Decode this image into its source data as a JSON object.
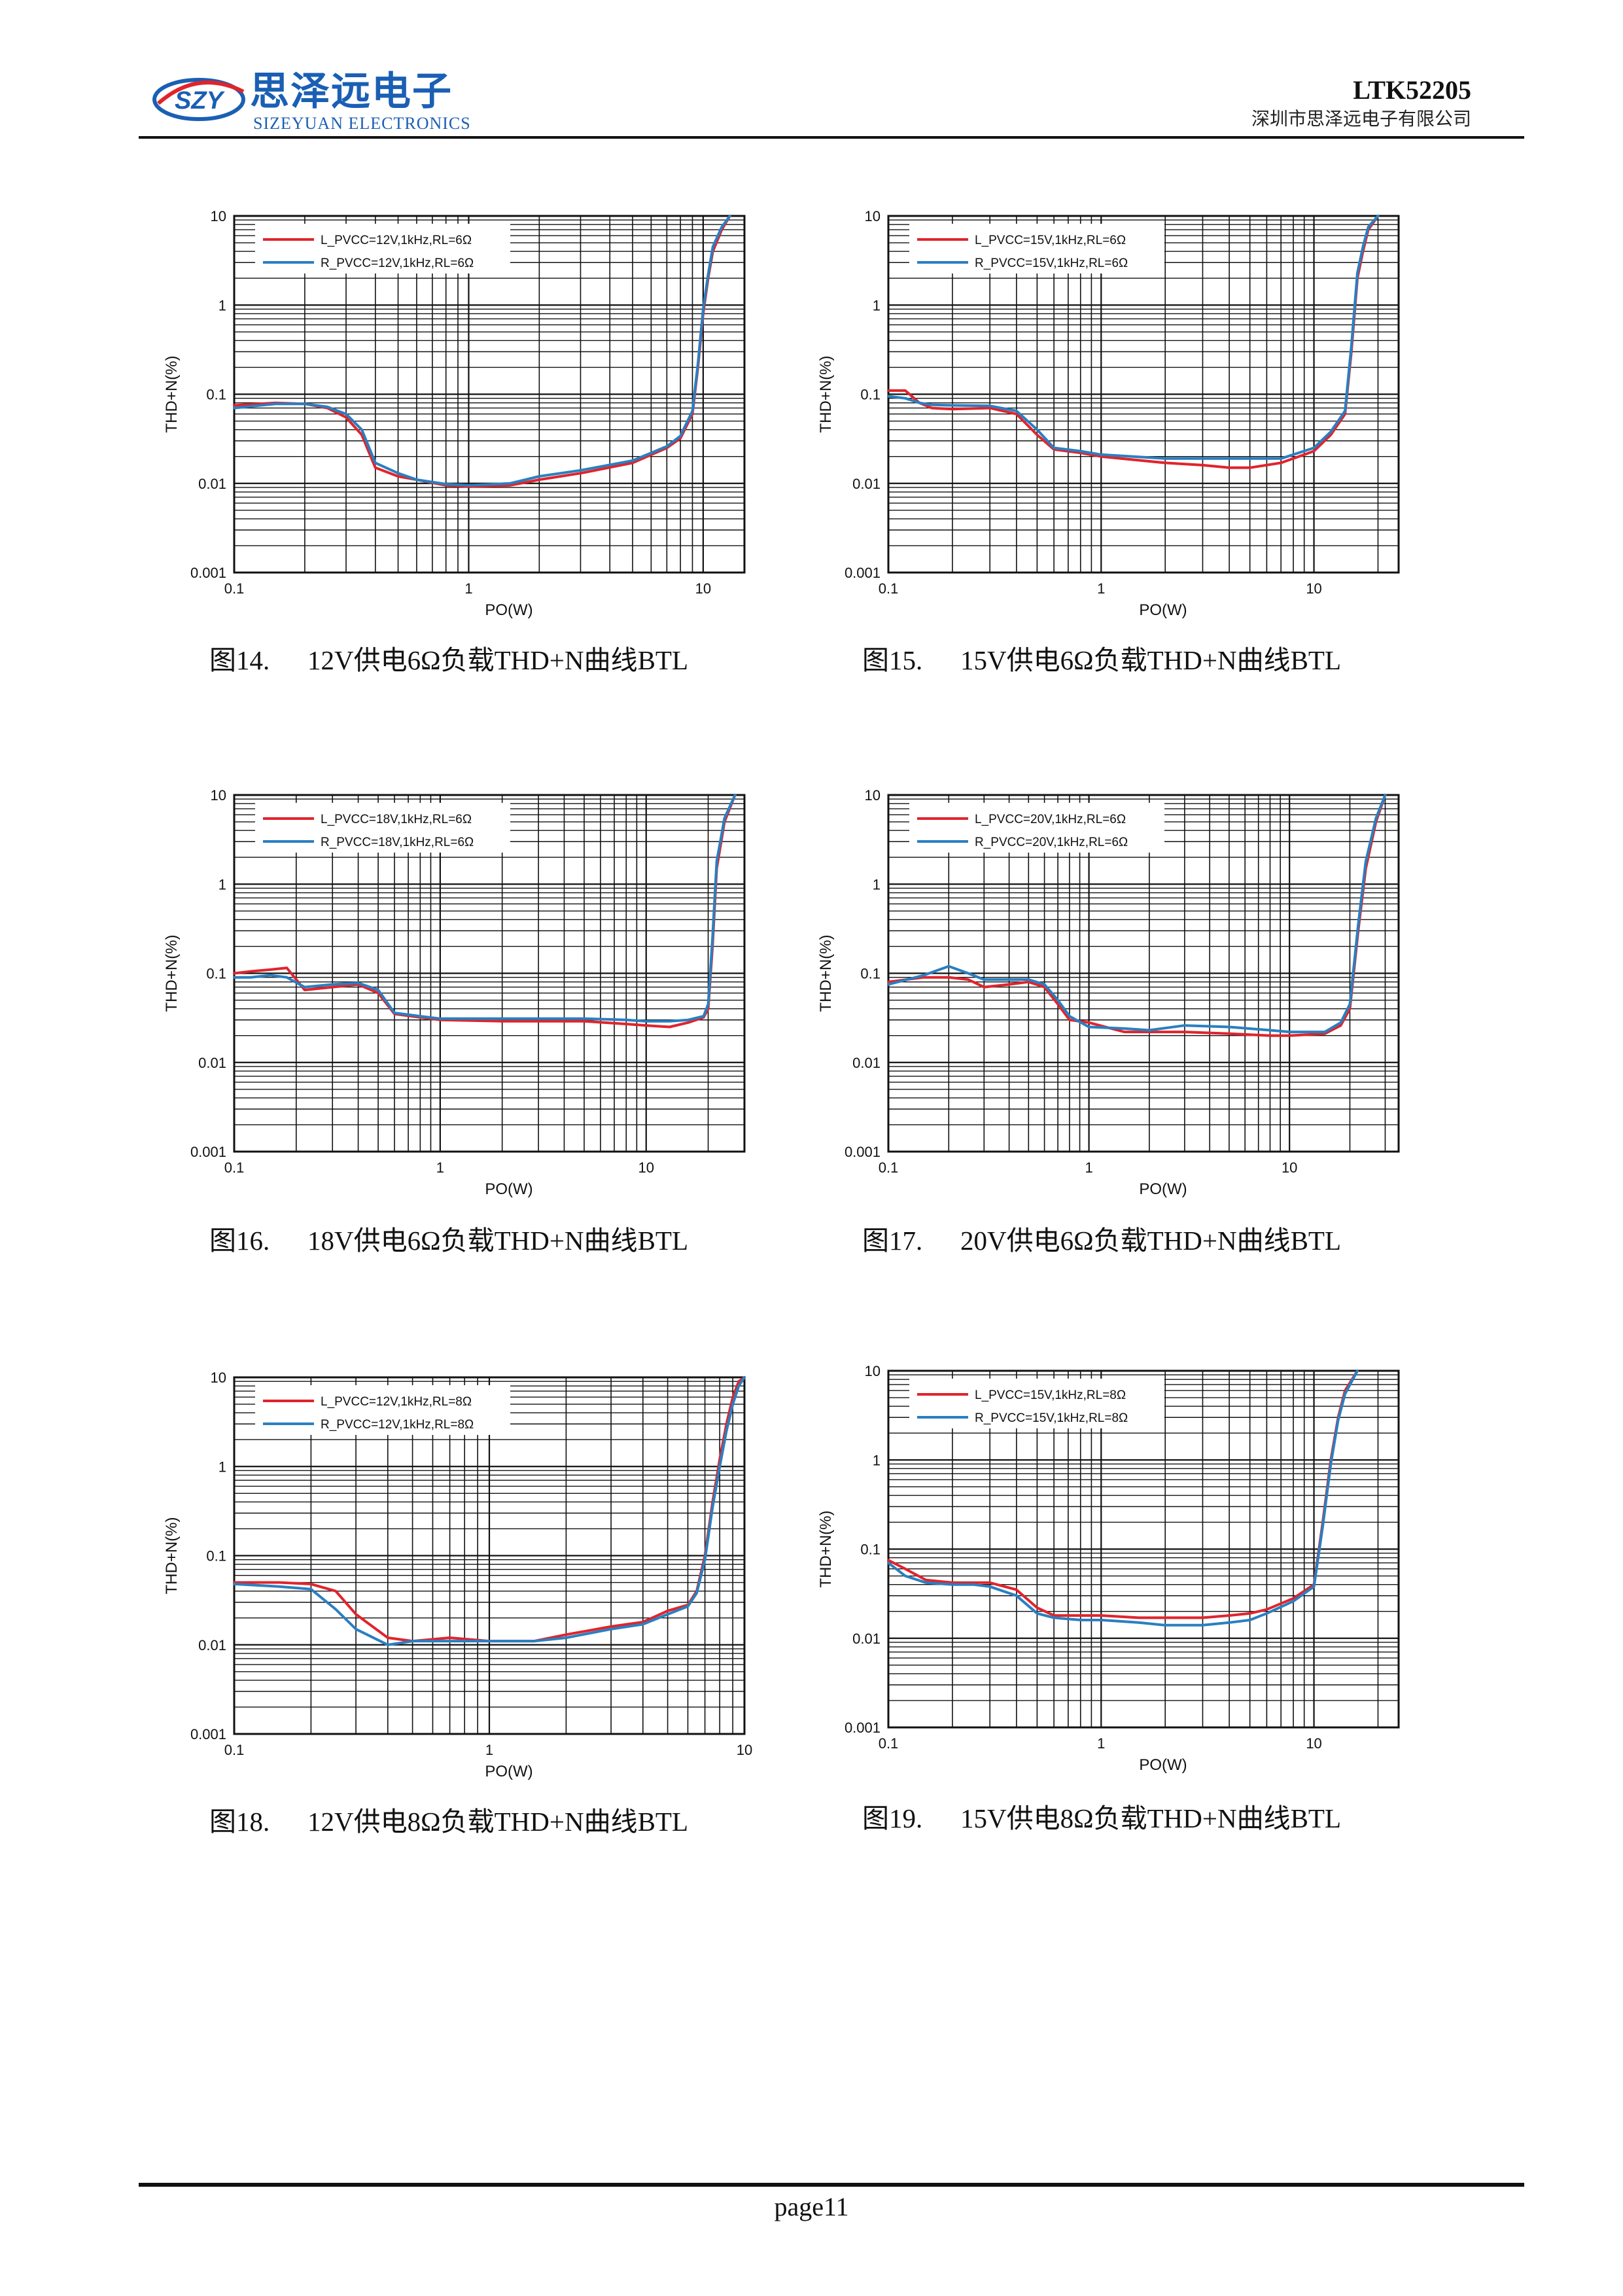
{
  "header": {
    "logo_badge_text": "SZY",
    "logo_company_cn": "思泽远电子",
    "logo_company_en": "SIZEYUAN ELECTRONICS",
    "doc_code": "LTK52205",
    "company_name": "深圳市思泽远电子有限公司"
  },
  "colors": {
    "left_channel": "#e0242c",
    "right_channel": "#2a7fc1",
    "logo": "#1a5fb4"
  },
  "figures": [
    {
      "label": "图14.",
      "title": "12V供电6Ω负载THD+N曲线BTL"
    },
    {
      "label": "图15.",
      "title": "15V供电6Ω负载THD+N曲线BTL"
    },
    {
      "label": "图16.",
      "title": "18V供电6Ω负载THD+N曲线BTL"
    },
    {
      "label": "图17.",
      "title": "20V供电6Ω负载THD+N曲线BTL"
    },
    {
      "label": "图18.",
      "title": "12V供电8Ω负载THD+N曲线BTL"
    },
    {
      "label": "图19.",
      "title": "15V供电8Ω负载THD+N曲线BTL"
    }
  ],
  "chart_data": [
    {
      "type": "line",
      "xscale": "log",
      "yscale": "log",
      "xlabel": "PO(W)",
      "ylabel": "THD+N(%)",
      "xlim": [
        0.1,
        15
      ],
      "ylim": [
        0.001,
        10
      ],
      "xticks": [
        "0.1",
        "1",
        "10"
      ],
      "yticks": [
        "0.001",
        "0.01",
        "0.1",
        "1",
        "10"
      ],
      "grid": true,
      "legend_position": "top-left",
      "series": [
        {
          "name": "L_PVCC=12V,1kHz,RL=6Ω",
          "x": [
            0.1,
            0.15,
            0.2,
            0.25,
            0.3,
            0.35,
            0.4,
            0.5,
            0.6,
            0.8,
            1,
            1.5,
            2,
            3,
            5,
            7,
            8,
            9,
            9.5,
            10,
            10.5,
            11,
            12,
            13
          ],
          "y": [
            0.075,
            0.08,
            0.078,
            0.07,
            0.055,
            0.035,
            0.015,
            0.012,
            0.011,
            0.0095,
            0.0092,
            0.0095,
            0.011,
            0.013,
            0.017,
            0.025,
            0.032,
            0.06,
            0.2,
            0.8,
            2,
            4,
            7,
            10
          ]
        },
        {
          "name": "R_PVCC=12V,1kHz,RL=6Ω",
          "x": [
            0.1,
            0.15,
            0.2,
            0.25,
            0.3,
            0.35,
            0.4,
            0.5,
            0.6,
            0.8,
            1,
            1.5,
            2,
            3,
            5,
            7,
            8,
            9,
            9.5,
            10,
            10.5,
            11,
            12,
            13
          ],
          "y": [
            0.07,
            0.078,
            0.078,
            0.072,
            0.06,
            0.04,
            0.017,
            0.013,
            0.011,
            0.0098,
            0.0095,
            0.01,
            0.012,
            0.014,
            0.018,
            0.026,
            0.034,
            0.065,
            0.22,
            0.9,
            2.2,
            4.5,
            7.5,
            10
          ]
        }
      ]
    },
    {
      "type": "line",
      "xscale": "log",
      "yscale": "log",
      "xlabel": "PO(W)",
      "ylabel": "THD+N(%)",
      "xlim": [
        0.1,
        25
      ],
      "ylim": [
        0.001,
        10
      ],
      "xticks": [
        "0.1",
        "1",
        "10"
      ],
      "yticks": [
        "0.001",
        "0.01",
        "0.1",
        "1",
        "10"
      ],
      "grid": true,
      "legend_position": "top-left",
      "series": [
        {
          "name": "L_PVCC=15V,1kHz,RL=6Ω",
          "x": [
            0.1,
            0.12,
            0.14,
            0.16,
            0.2,
            0.3,
            0.4,
            0.5,
            0.6,
            0.8,
            1,
            2,
            3,
            4,
            5,
            7,
            10,
            12,
            14,
            15,
            16,
            17,
            18,
            20
          ],
          "y": [
            0.11,
            0.11,
            0.08,
            0.07,
            0.068,
            0.07,
            0.06,
            0.035,
            0.024,
            0.022,
            0.02,
            0.017,
            0.016,
            0.015,
            0.015,
            0.017,
            0.023,
            0.035,
            0.06,
            0.3,
            2,
            4,
            7,
            10
          ]
        },
        {
          "name": "R_PVCC=15V,1kHz,RL=6Ω",
          "x": [
            0.1,
            0.12,
            0.14,
            0.16,
            0.2,
            0.3,
            0.4,
            0.5,
            0.6,
            0.8,
            1,
            2,
            3,
            4,
            5,
            7,
            10,
            12,
            14,
            15,
            16,
            17,
            18,
            20
          ],
          "y": [
            0.095,
            0.09,
            0.08,
            0.076,
            0.075,
            0.074,
            0.065,
            0.04,
            0.025,
            0.023,
            0.021,
            0.019,
            0.019,
            0.019,
            0.019,
            0.019,
            0.025,
            0.038,
            0.065,
            0.35,
            2.3,
            4.5,
            7.5,
            10
          ]
        }
      ]
    },
    {
      "type": "line",
      "xscale": "log",
      "yscale": "log",
      "xlabel": "PO(W)",
      "ylabel": "THD+N(%)",
      "xlim": [
        0.1,
        30
      ],
      "ylim": [
        0.001,
        10
      ],
      "xticks": [
        "0.1",
        "1",
        "10"
      ],
      "yticks": [
        "0.001",
        "0.01",
        "0.1",
        "1",
        "10"
      ],
      "grid": true,
      "legend_position": "top-left",
      "series": [
        {
          "name": "L_PVCC=18V,1kHz,RL=6Ω",
          "x": [
            0.1,
            0.12,
            0.15,
            0.18,
            0.22,
            0.3,
            0.4,
            0.5,
            0.6,
            0.8,
            1,
            2,
            3,
            5,
            8,
            10,
            13,
            16,
            19,
            20,
            21,
            22,
            24,
            27
          ],
          "y": [
            0.1,
            0.105,
            0.11,
            0.115,
            0.065,
            0.07,
            0.075,
            0.06,
            0.035,
            0.032,
            0.03,
            0.029,
            0.029,
            0.029,
            0.027,
            0.026,
            0.025,
            0.028,
            0.032,
            0.04,
            0.2,
            1.5,
            5,
            10
          ]
        },
        {
          "name": "R_PVCC=18V,1kHz,RL=6Ω",
          "x": [
            0.1,
            0.12,
            0.15,
            0.18,
            0.22,
            0.3,
            0.4,
            0.5,
            0.6,
            0.8,
            1,
            2,
            3,
            5,
            8,
            10,
            13,
            16,
            19,
            20,
            21,
            22,
            24,
            27
          ],
          "y": [
            0.09,
            0.09,
            0.095,
            0.09,
            0.07,
            0.075,
            0.078,
            0.065,
            0.036,
            0.033,
            0.031,
            0.031,
            0.031,
            0.031,
            0.03,
            0.029,
            0.029,
            0.03,
            0.033,
            0.045,
            0.25,
            1.8,
            5.5,
            10
          ]
        }
      ]
    },
    {
      "type": "line",
      "xscale": "log",
      "yscale": "log",
      "xlabel": "PO(W)",
      "ylabel": "THD+N(%)",
      "xlim": [
        0.1,
        35
      ],
      "ylim": [
        0.001,
        10
      ],
      "xticks": [
        "0.1",
        "1",
        "10"
      ],
      "yticks": [
        "0.001",
        "0.01",
        "0.1",
        "1",
        "10"
      ],
      "grid": true,
      "legend_position": "top-left",
      "series": [
        {
          "name": "L_PVCC=20V,1kHz,RL=6Ω",
          "x": [
            0.1,
            0.15,
            0.2,
            0.25,
            0.3,
            0.4,
            0.5,
            0.6,
            0.7,
            0.8,
            1,
            1.5,
            2,
            3,
            5,
            8,
            10,
            15,
            18,
            20,
            22,
            24,
            27,
            30
          ],
          "y": [
            0.08,
            0.09,
            0.09,
            0.085,
            0.07,
            0.075,
            0.08,
            0.07,
            0.045,
            0.03,
            0.028,
            0.022,
            0.022,
            0.022,
            0.021,
            0.02,
            0.02,
            0.021,
            0.026,
            0.04,
            0.3,
            1.5,
            5,
            10
          ]
        },
        {
          "name": "R_PVCC=20V,1kHz,RL=6Ω",
          "x": [
            0.1,
            0.15,
            0.2,
            0.25,
            0.3,
            0.4,
            0.5,
            0.6,
            0.7,
            0.8,
            1,
            1.5,
            2,
            3,
            5,
            8,
            10,
            15,
            18,
            20,
            22,
            24,
            27,
            30
          ],
          "y": [
            0.075,
            0.095,
            0.12,
            0.1,
            0.085,
            0.085,
            0.085,
            0.075,
            0.05,
            0.033,
            0.025,
            0.024,
            0.023,
            0.026,
            0.025,
            0.023,
            0.022,
            0.022,
            0.028,
            0.045,
            0.35,
            1.8,
            5.5,
            10
          ]
        }
      ]
    },
    {
      "type": "line",
      "xscale": "log",
      "yscale": "log",
      "xlabel": "PO(W)",
      "ylabel": "THD+N(%)",
      "xlim": [
        0.1,
        10
      ],
      "ylim": [
        0.001,
        10
      ],
      "xticks": [
        "0.1",
        "1",
        "10"
      ],
      "yticks": [
        "0.001",
        "0.01",
        "0.1",
        "1",
        "10"
      ],
      "grid": true,
      "legend_position": "top-left",
      "series": [
        {
          "name": "L_PVCC=12V,1kHz,RL=8Ω",
          "x": [
            0.1,
            0.15,
            0.2,
            0.25,
            0.3,
            0.4,
            0.5,
            0.7,
            1,
            1.5,
            2,
            3,
            4,
            5,
            6,
            6.5,
            7,
            7.5,
            8,
            8.5,
            9,
            9.5,
            10
          ],
          "y": [
            0.05,
            0.05,
            0.048,
            0.04,
            0.022,
            0.012,
            0.011,
            0.012,
            0.011,
            0.011,
            0.013,
            0.016,
            0.018,
            0.024,
            0.028,
            0.04,
            0.1,
            0.4,
            1.2,
            3,
            6,
            9,
            10
          ]
        },
        {
          "name": "R_PVCC=12V,1kHz,RL=8Ω",
          "x": [
            0.1,
            0.15,
            0.2,
            0.25,
            0.3,
            0.4,
            0.5,
            0.7,
            1,
            1.5,
            2,
            3,
            4,
            5,
            6,
            6.5,
            7,
            7.5,
            8,
            8.5,
            9,
            9.5,
            10
          ],
          "y": [
            0.048,
            0.045,
            0.042,
            0.025,
            0.015,
            0.01,
            0.011,
            0.011,
            0.011,
            0.011,
            0.012,
            0.015,
            0.017,
            0.022,
            0.027,
            0.038,
            0.09,
            0.35,
            1,
            2.5,
            5,
            8,
            10
          ]
        }
      ]
    },
    {
      "type": "line",
      "xscale": "log",
      "yscale": "log",
      "xlabel": "PO(W)",
      "ylabel": "THD+N(%)",
      "xlim": [
        0.1,
        25
      ],
      "ylim": [
        0.001,
        10
      ],
      "xticks": [
        "0.1",
        "1",
        "10"
      ],
      "yticks": [
        "0.001",
        "0.01",
        "0.1",
        "1",
        "10"
      ],
      "grid": true,
      "legend_position": "top-left",
      "series": [
        {
          "name": "L_PVCC=15V,1kHz,RL=8Ω",
          "x": [
            0.1,
            0.12,
            0.15,
            0.2,
            0.25,
            0.3,
            0.4,
            0.5,
            0.6,
            0.8,
            1,
            1.5,
            2,
            3,
            4,
            5,
            6,
            8,
            10,
            11,
            12,
            13,
            14,
            16
          ],
          "y": [
            0.075,
            0.06,
            0.045,
            0.042,
            0.042,
            0.042,
            0.035,
            0.022,
            0.018,
            0.018,
            0.018,
            0.017,
            0.017,
            0.017,
            0.018,
            0.019,
            0.021,
            0.028,
            0.04,
            0.2,
            1,
            3,
            6,
            10
          ]
        },
        {
          "name": "R_PVCC=15V,1kHz,RL=8Ω",
          "x": [
            0.1,
            0.12,
            0.15,
            0.2,
            0.25,
            0.3,
            0.4,
            0.5,
            0.6,
            0.8,
            1,
            1.5,
            2,
            3,
            4,
            5,
            6,
            8,
            10,
            11,
            12,
            13,
            14,
            16
          ],
          "y": [
            0.07,
            0.05,
            0.042,
            0.04,
            0.04,
            0.038,
            0.03,
            0.019,
            0.017,
            0.016,
            0.016,
            0.015,
            0.014,
            0.014,
            0.015,
            0.016,
            0.019,
            0.026,
            0.038,
            0.18,
            0.9,
            2.8,
            5.5,
            10
          ]
        }
      ]
    }
  ],
  "footer": {
    "page_label": "page11"
  }
}
